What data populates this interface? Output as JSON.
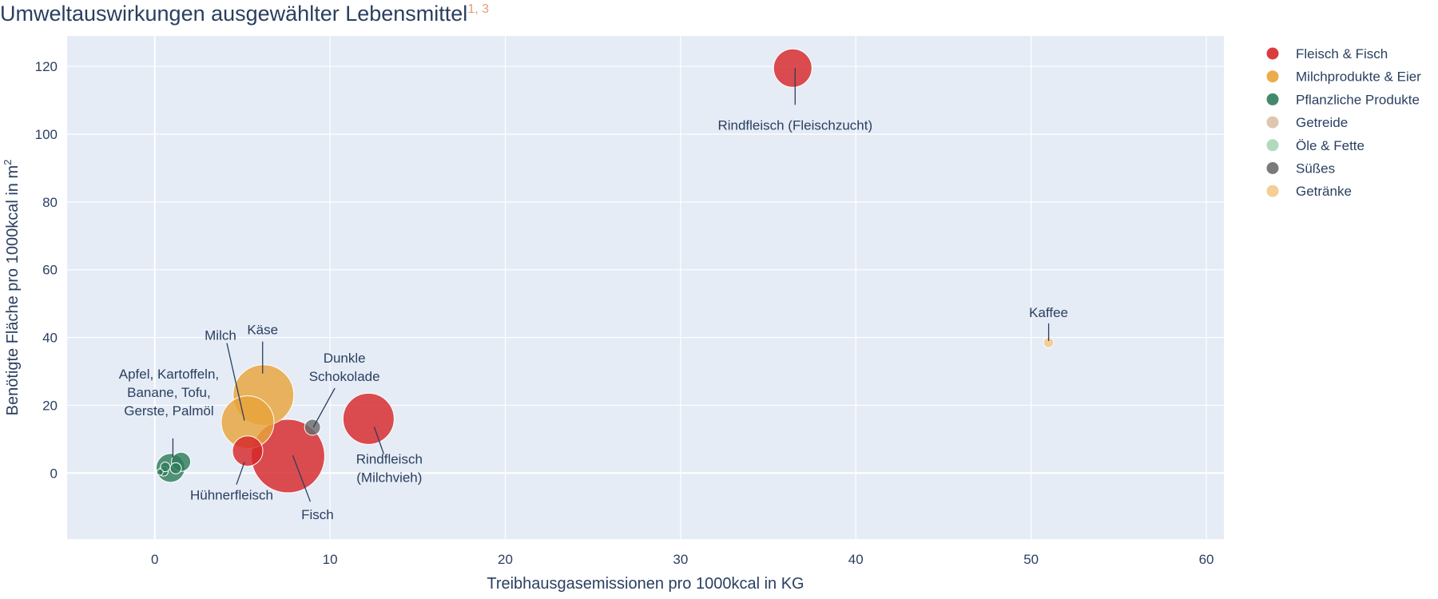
{
  "chart_data": {
    "type": "scatter",
    "title": "Umweltauswirkungen ausgewählter Lebensmittel",
    "title_superscript": "1, 3",
    "xlabel": "Treibhausgasemissionen pro 1000kcal in KG",
    "ylabel": "Benötigte Fläche pro 1000kcal in m²",
    "xlim": [
      -5,
      61
    ],
    "ylim": [
      -19.5,
      129
    ],
    "xticks": [
      0,
      10,
      20,
      30,
      40,
      50,
      60
    ],
    "yticks": [
      0,
      20,
      40,
      60,
      80,
      100,
      120
    ],
    "grid": true,
    "legend_placement": "right",
    "series": [
      {
        "name": "Fleisch & Fisch",
        "color": "#d62728",
        "points": [
          {
            "x": 36.4,
            "y": 119.5,
            "size": 48,
            "label": "Rindfleisch (Fleischzucht)"
          },
          {
            "x": 7.6,
            "y": 5,
            "size": 92,
            "label": "Fisch"
          },
          {
            "x": 12.2,
            "y": 16,
            "size": 64,
            "label": "Rindfleisch (Milchvieh)"
          },
          {
            "x": 5.3,
            "y": 6.5,
            "size": 38,
            "label": "Hühnerfleisch"
          }
        ]
      },
      {
        "name": "Milchprodukte & Eier",
        "color": "#e8a33a",
        "points": [
          {
            "x": 6.2,
            "y": 23,
            "size": 76,
            "label": "Käse"
          },
          {
            "x": 5.3,
            "y": 15,
            "size": 66,
            "label": "Milch"
          }
        ]
      },
      {
        "name": "Pflanzliche Produkte",
        "color": "#2e7d5b",
        "points": [
          {
            "x": 0.9,
            "y": 1.5,
            "size": 36,
            "label": "Apfel, Kartoffeln, Banane, Tofu, Gerste, Palmöl"
          },
          {
            "x": 1.5,
            "y": 3.3,
            "size": 24,
            "label": ""
          },
          {
            "x": 0.5,
            "y": 0.5,
            "size": 12,
            "label": ""
          },
          {
            "x": 1.2,
            "y": 1.4,
            "size": 14,
            "label": ""
          },
          {
            "x": 0.6,
            "y": 1.8,
            "size": 12,
            "label": ""
          },
          {
            "x": 0.3,
            "y": 0.3,
            "size": 8,
            "label": ""
          }
        ]
      },
      {
        "name": "Getreide",
        "color": "#dcc0a8",
        "points": []
      },
      {
        "name": "Öle & Fette",
        "color": "#a9d6b6",
        "points": []
      },
      {
        "name": "Süßes",
        "color": "#6b6b6b",
        "points": [
          {
            "x": 9.0,
            "y": 13.5,
            "size": 20,
            "label": "Dunkle Schokolade"
          }
        ]
      },
      {
        "name": "Getränke",
        "color": "#f3c98a",
        "points": [
          {
            "x": 51.0,
            "y": 38.5,
            "size": 13,
            "label": "Kaffee"
          }
        ]
      }
    ],
    "annotations": [
      {
        "lines": [
          "Rindfleisch (Fleischzucht)"
        ],
        "x": 36.4,
        "y": 119.5
      },
      {
        "lines": [
          "Kaffee"
        ],
        "x": 51.0,
        "y": 38.5
      },
      {
        "lines": [
          "Käse"
        ],
        "x": 6.2,
        "y": 23
      },
      {
        "lines": [
          "Milch"
        ],
        "x": 5.3,
        "y": 15
      },
      {
        "lines": [
          "Dunkle",
          "Schokolade"
        ],
        "x": 9.0,
        "y": 13.5
      },
      {
        "lines": [
          "Apfel, Kartoffeln,",
          "Banane, Tofu,",
          "Gerste, Palmöl"
        ],
        "x": 0.9,
        "y": 1.5
      },
      {
        "lines": [
          "Rindfleisch",
          "(Milchvieh)"
        ],
        "x": 12.2,
        "y": 16
      },
      {
        "lines": [
          "Hühnerfleisch"
        ],
        "x": 5.3,
        "y": 6.5
      },
      {
        "lines": [
          "Fisch"
        ],
        "x": 7.6,
        "y": 5
      }
    ]
  }
}
